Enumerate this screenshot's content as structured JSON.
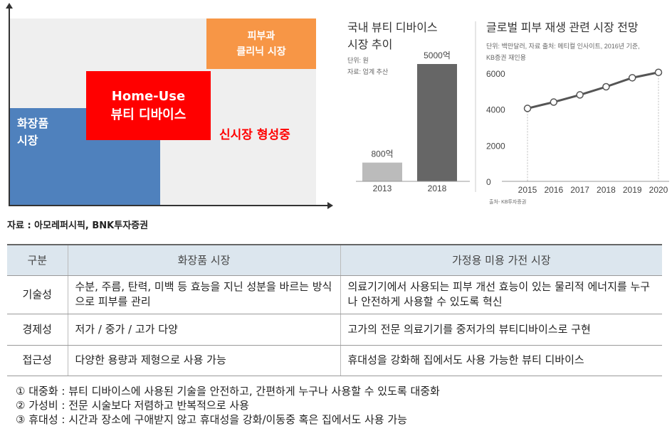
{
  "diagram": {
    "cosmetics_market": "화장품\n시장",
    "home_use_device": "Home-Use\n뷰티 디바이스",
    "skin_clinic_market": "피부과\n클리닉 시장",
    "new_market": "신시장 형성중",
    "source": "자료 : 아모레퍼시픽, BNK투자증권",
    "colors": {
      "cosmetics": "#4f81bd",
      "device": "#ff0000",
      "clinic": "#f79646",
      "bg": "#efefef"
    }
  },
  "chart_data": [
    {
      "type": "bar",
      "title": "국내 뷰티 디바이스\n시장 추이",
      "unit": "단위: 원",
      "source": "자료: 업계 추산",
      "categories": [
        "2013",
        "2018"
      ],
      "values": [
        800,
        5000
      ],
      "data_labels": [
        "800억",
        "5000억"
      ],
      "colors": [
        "#bbbbbb",
        "#666666"
      ]
    },
    {
      "type": "line",
      "title": "글로벌 피부 재생 관련 시장 전망",
      "subtitle": "단위: 백만달러, 자료 출처: 메티컬 인사이트, 2016년 기준,\nKB증권 재인용",
      "x": [
        "2015",
        "2016",
        "2017",
        "2018",
        "2019",
        "2020"
      ],
      "values": [
        4050,
        4400,
        4800,
        5250,
        5750,
        6050
      ],
      "yticks": [
        "0",
        "2000",
        "4000",
        "6000"
      ],
      "ylim": [
        0,
        6000
      ],
      "source": "출처- KB투자증권"
    }
  ],
  "table": {
    "headers": [
      "구분",
      "화장품 시장",
      "가정용 미용 가전 시장"
    ],
    "rows": [
      [
        "기술성",
        "수분, 주름, 탄력, 미백 등 효능을 지닌 성분을 바르는 방식으로 피부를 관리",
        "의료기기에서 사용되는 피부 개선 효능이 있는 물리적 에너지를 누구나 안전하게 사용할 수 있도록 혁신"
      ],
      [
        "경제성",
        "저가 / 중가 / 고가 다양",
        "고가의 전문 의료기기를 중저가의 뷰티디바이스로 구현"
      ],
      [
        "접근성",
        "다양한 용량과 제형으로 사용 가능",
        "휴대성을 강화해 집에서도 사용 가능한 뷰티 디바이스"
      ]
    ]
  },
  "notes": [
    "① 대중화 : 뷰티 디바이스에 사용된 기술을 안전하고, 간편하게 누구나 사용할 수 있도록 대중화",
    "② 가성비 : 전문 시술보다 저렴하고 반복적으로 사용",
    "③ 휴대성 : 시간과 장소에 구애받지 않고 휴대성을 강화/이동중 혹은 집에서도 사용 가능"
  ]
}
